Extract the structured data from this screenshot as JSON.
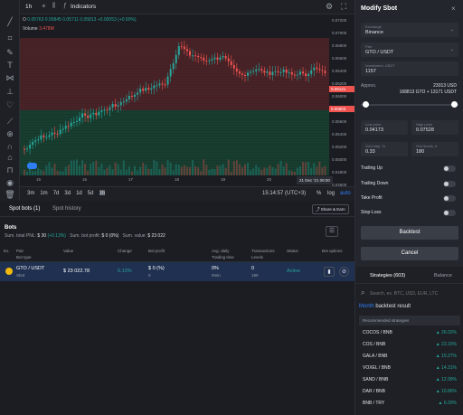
{
  "colors": {
    "bg": "#1b1d22",
    "green": "#26a69a",
    "red": "#ef5350",
    "accent": "#2f7ef7",
    "highlight_row": "#1f3050"
  },
  "chart_toolbar": {
    "interval": "1h",
    "indicators": "Indicators"
  },
  "ohlc": {
    "pair_prefix": "O",
    "open": "0.05763",
    "high": "0.05845",
    "low": "0.05711",
    "close": "0.05813",
    "change": "+0.00053 (+0.90%)"
  },
  "volume": {
    "label": "Volume",
    "value": "3.478M"
  },
  "price_scale": [
    "0.07200",
    "0.07000",
    "0.06800",
    "0.06600",
    "0.06400",
    "0.06200",
    "0.06141",
    "0.06000",
    "0.05800",
    "0.05600",
    "0.05400",
    "0.05200",
    "0.05000",
    "0.04800",
    "0.04600",
    "0.04400"
  ],
  "price_markers": {
    "top": "0.06141",
    "current": "0.05803"
  },
  "time_axis": [
    "15",
    "16",
    "17",
    "18",
    "19",
    "20"
  ],
  "time_highlight": "21 Dec '21  09:00",
  "timeframes": [
    "3m",
    "1m",
    "7d",
    "3d",
    "1d",
    "5d",
    "1h"
  ],
  "clock": "15:14:57 (UTC+3)",
  "scale_opts": {
    "pct": "%",
    "log": "log",
    "auto": "auto"
  },
  "modify_panel": {
    "title": "Modify Sbot",
    "exchange": {
      "label": "Exchange",
      "value": "Binance"
    },
    "pair": {
      "label": "Pair",
      "value": "GTO / USDT"
    },
    "investment": {
      "label": "Investment, USDT",
      "value": "1157"
    },
    "approx_label": "Approx.",
    "approx_value1": "23013 USD",
    "approx_value2": "168813 GTO + 13171 USDT",
    "low_price": {
      "label": "Low price",
      "value": "0.04173"
    },
    "high_price": {
      "label": "High price",
      "value": "0.07528"
    },
    "grid_step": {
      "label": "Grid step, %",
      "value": "0.33"
    },
    "grid_levels": {
      "label": "Grid levels, #",
      "value": "180"
    },
    "toggles": [
      "Trailing Up",
      "Trailing Down",
      "Take Profit",
      "Stop-Loss"
    ],
    "backtest": "Backtest",
    "cancel": "Cancel"
  },
  "bots_section": {
    "tabs": [
      "Spot bots (1)",
      "Spot history"
    ],
    "share": "Share & Earn",
    "heading": "Bots",
    "summary": {
      "pnl_label": "Sum. total PNL:",
      "pnl_value": "$ 30",
      "pnl_pct": "(+0.13%)",
      "profit_label": "Sum. bot profit:",
      "profit_value": "$ 0 (0%)",
      "value_label": "Sum. value:",
      "value_value": "$ 23 022"
    },
    "columns": [
      "Ex.",
      "Pair\nBot type",
      "Value",
      "Change",
      "Bot profit",
      "Avg. daily\nTrading time",
      "Transactions\nLevels",
      "Status",
      "Bot options"
    ],
    "row": {
      "pair": "GTO / USDT",
      "type": "Sbot",
      "value": "$ 23 022.78",
      "change": "0.13%",
      "profit": "$ 0 (%)",
      "profit_sub": "0",
      "avg": "0%",
      "time": "0min",
      "tx": "0",
      "levels": "180",
      "status": "Active"
    }
  },
  "strategies": {
    "tabs": [
      "Strategies (603)",
      "Balance"
    ],
    "search_placeholder": "Search, ex. BTC, USD, EUR, LTC",
    "month": "Month",
    "result_label": "backtest result",
    "recommended": "Recommended strategies",
    "items": [
      {
        "pair": "COCOS / BNB",
        "pct": "26.02%"
      },
      {
        "pair": "COS / BNB",
        "pct": "23.15%"
      },
      {
        "pair": "GALA / BNB",
        "pct": "15.27%"
      },
      {
        "pair": "VOXEL / BNB",
        "pct": "14.31%"
      },
      {
        "pair": "SAND / BNB",
        "pct": "12.99%"
      },
      {
        "pair": "DAR / BNB",
        "pct": "10.86%"
      },
      {
        "pair": "BNB / TRY",
        "pct": "6.20%"
      }
    ]
  }
}
